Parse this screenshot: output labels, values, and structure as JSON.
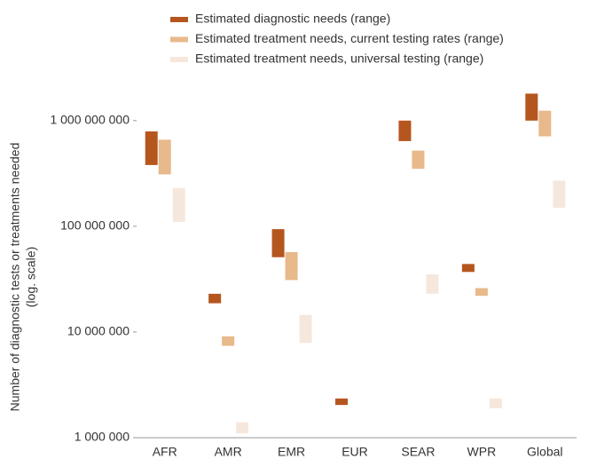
{
  "chart_data": {
    "type": "range-bar",
    "y_label": [
      "Number of diagnostic tests or treatments needed",
      "(log. scale)"
    ],
    "categories": [
      "AFR",
      "AMR",
      "EMR",
      "EUR",
      "SEAR",
      "WPR",
      "Global"
    ],
    "series": [
      {
        "name": "Estimated diagnostic needs (range)",
        "color": "#b5561f",
        "values": [
          [
            380000000,
            790000000
          ],
          [
            18700000,
            23000000
          ],
          [
            51000000,
            94000000
          ],
          [
            2040000,
            2350000
          ],
          [
            640000000,
            1000000000
          ],
          [
            37000000,
            44000000
          ],
          [
            1000000000,
            1800000000
          ]
        ]
      },
      {
        "name": "Estimated treatment needs, current testing rates (range)",
        "color": "#e8b98a",
        "values": [
          [
            310000000,
            660000000
          ],
          [
            7400000,
            9100000
          ],
          [
            31000000,
            57000000
          ],
          null,
          [
            350000000,
            520000000
          ],
          [
            22000000,
            26000000
          ],
          [
            710000000,
            1240000000
          ]
        ]
      },
      {
        "name": "Estimated treatment needs, universal testing (range)",
        "color": "#f6e7dd",
        "values": [
          [
            110000000,
            230000000
          ],
          [
            1100000,
            1400000
          ],
          [
            7900000,
            14500000
          ],
          null,
          [
            23000000,
            35000000
          ],
          [
            1900000,
            2350000
          ],
          [
            150000000,
            270000000
          ]
        ]
      }
    ],
    "log_scale": true,
    "ylim": [
      1000000,
      2000000000
    ],
    "yticks": [
      {
        "value": 1000000,
        "label": "1 000 000"
      },
      {
        "value": 10000000,
        "label": "10 000 000"
      },
      {
        "value": 100000000,
        "label": "100 000 000"
      },
      {
        "value": 1000000000,
        "label": "1 000 000 000"
      }
    ],
    "legend": "top"
  }
}
